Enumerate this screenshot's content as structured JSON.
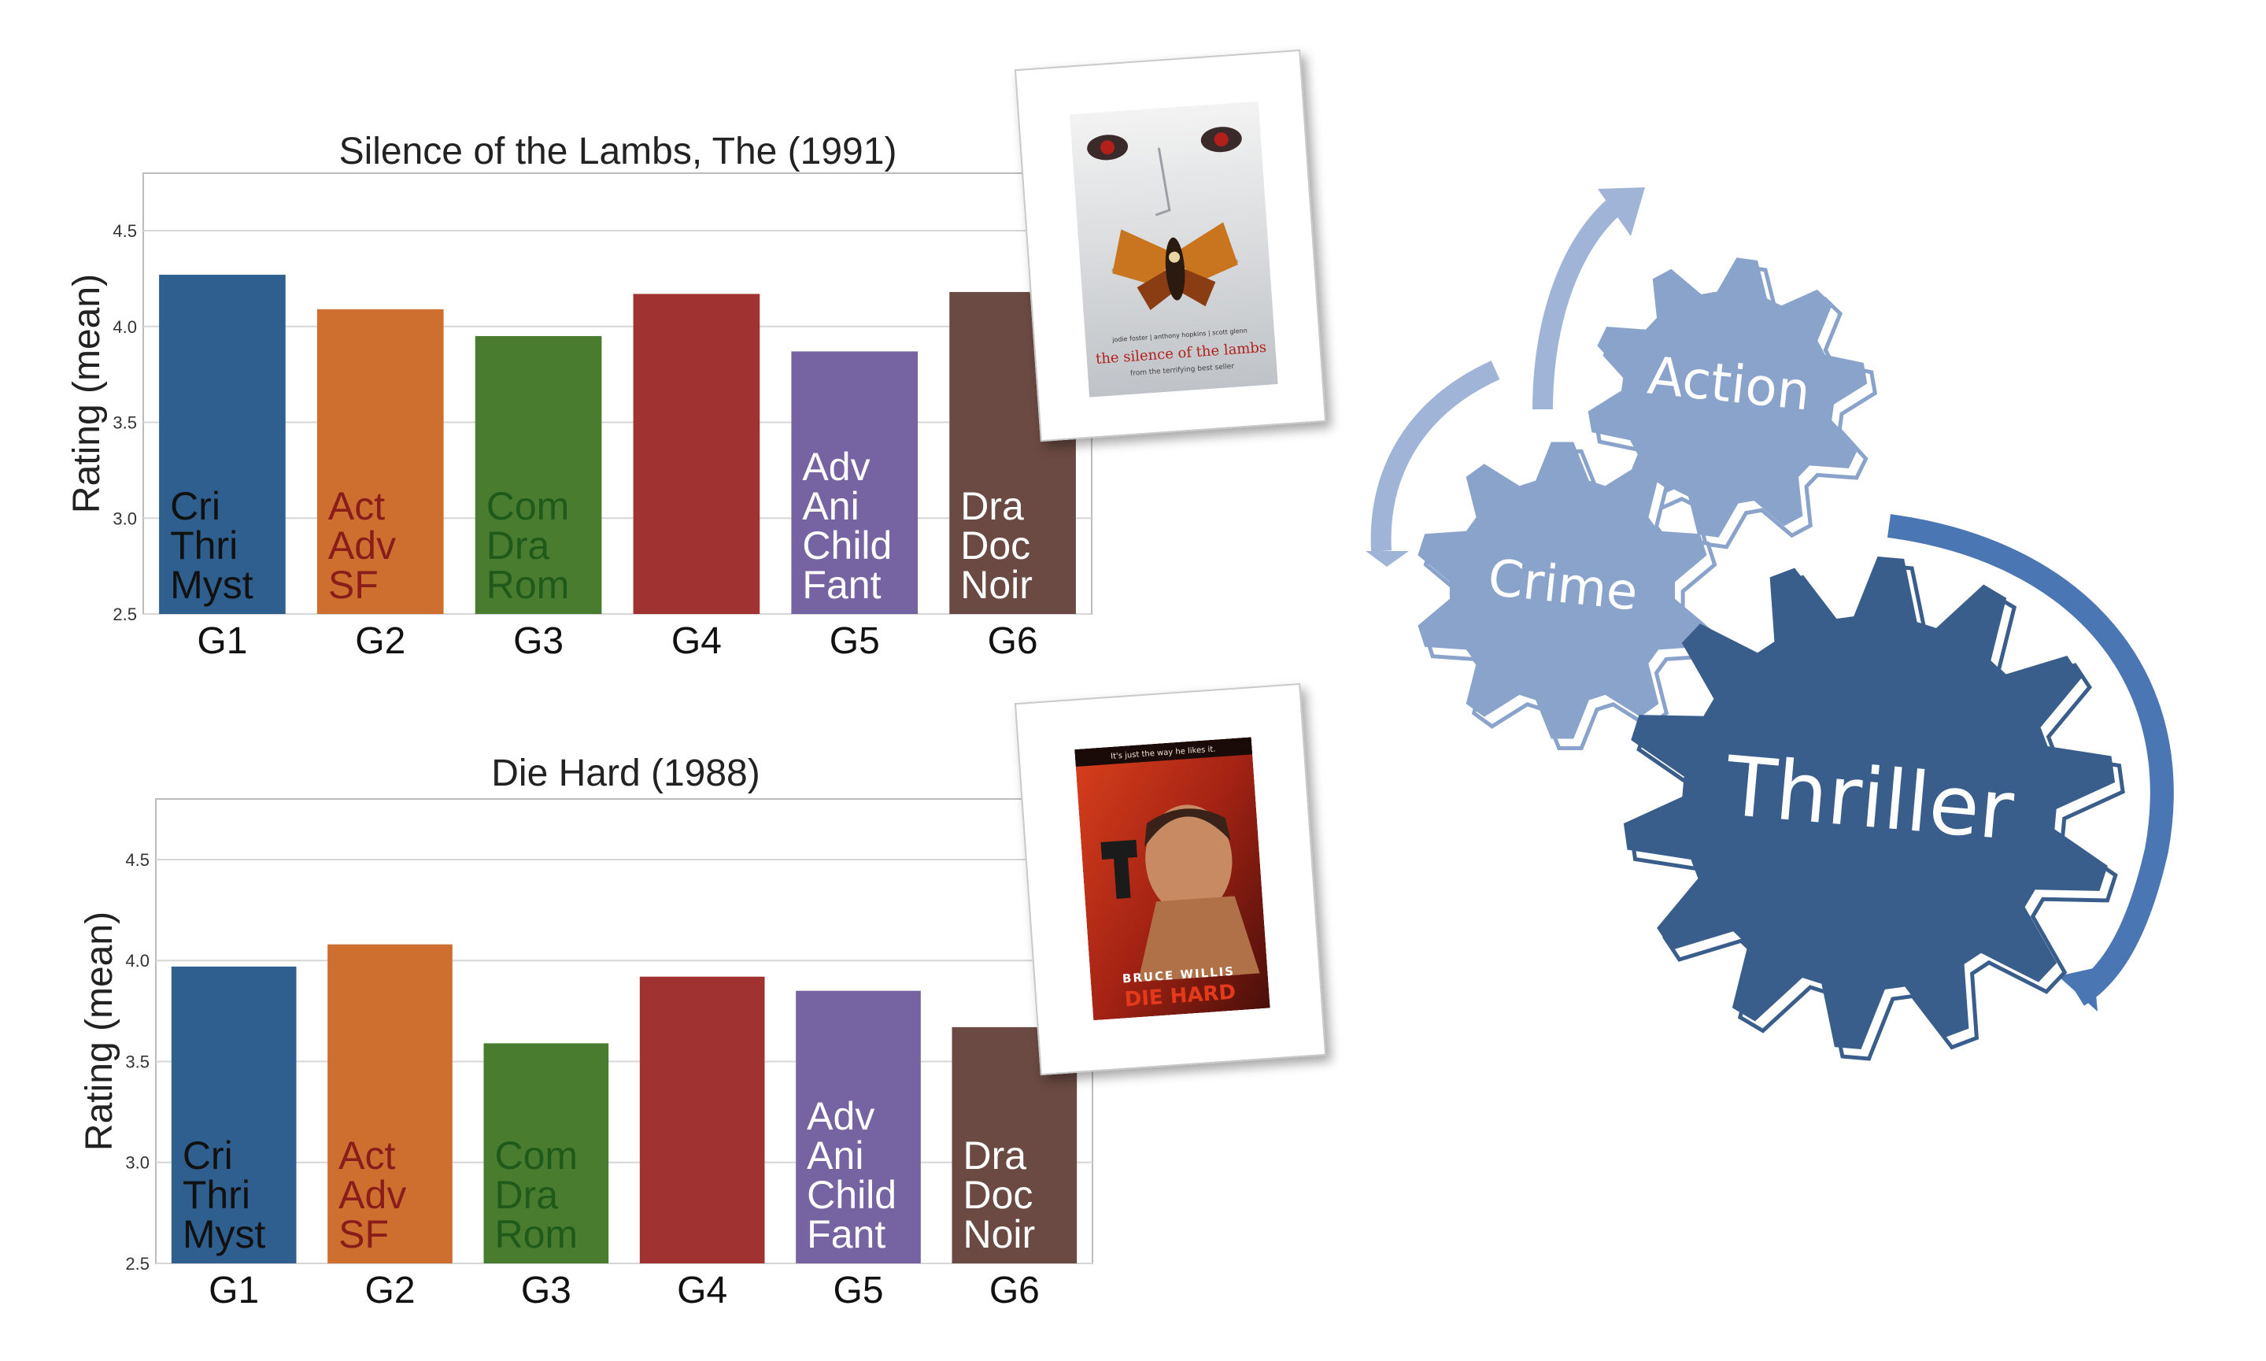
{
  "chart_data": [
    {
      "type": "bar",
      "title": "Silence of the Lambs, The (1991)",
      "xlabel": "",
      "ylabel": "Rating (mean)",
      "ylim": [
        2.5,
        4.8
      ],
      "yticks": [
        "2.5",
        "3.0",
        "3.5",
        "4.0",
        "4.5"
      ],
      "grid": true,
      "categories": [
        "G1",
        "G2",
        "G3",
        "G4",
        "G5",
        "G6"
      ],
      "values": [
        4.27,
        4.09,
        3.95,
        4.17,
        3.87,
        4.18
      ],
      "colors": [
        "#2f5f8f",
        "#cf6f2f",
        "#497c2f",
        "#a03232",
        "#7663a2",
        "#6a4a42"
      ],
      "bar_labels": [
        {
          "lines": [
            "Cri",
            "Thri",
            "Myst"
          ],
          "color": "#111111"
        },
        {
          "lines": [
            "Act",
            "Adv",
            "SF"
          ],
          "color": "#8a1c1c"
        },
        {
          "lines": [
            "Com",
            "Dra",
            "Rom"
          ],
          "color": "#1f5a1a"
        },
        {
          "lines": [],
          "color": "#ffffff"
        },
        {
          "lines": [
            "Adv",
            "Ani",
            "Child",
            "Fant"
          ],
          "color": "#ffffff"
        },
        {
          "lines": [
            "Dra",
            "Doc",
            "Noir"
          ],
          "color": "#ffffff"
        }
      ]
    },
    {
      "type": "bar",
      "title": "Die Hard (1988)",
      "xlabel": "",
      "ylabel": "Rating (mean)",
      "ylim": [
        2.5,
        4.8
      ],
      "yticks": [
        "2.5",
        "3.0",
        "3.5",
        "4.0",
        "4.5"
      ],
      "grid": true,
      "categories": [
        "G1",
        "G2",
        "G3",
        "G4",
        "G5",
        "G6"
      ],
      "values": [
        3.97,
        4.08,
        3.59,
        3.92,
        3.85,
        3.67
      ],
      "colors": [
        "#2f5f8f",
        "#cf6f2f",
        "#497c2f",
        "#a03232",
        "#7663a2",
        "#6a4a42"
      ],
      "bar_labels": [
        {
          "lines": [
            "Cri",
            "Thri",
            "Myst"
          ],
          "color": "#111111"
        },
        {
          "lines": [
            "Act",
            "Adv",
            "SF"
          ],
          "color": "#8a1c1c"
        },
        {
          "lines": [
            "Com",
            "Dra",
            "Rom"
          ],
          "color": "#1f5a1a"
        },
        {
          "lines": [],
          "color": "#ffffff"
        },
        {
          "lines": [
            "Adv",
            "Ani",
            "Child",
            "Fant"
          ],
          "color": "#ffffff"
        },
        {
          "lines": [
            "Dra",
            "Doc",
            "Noir"
          ],
          "color": "#ffffff"
        }
      ]
    }
  ],
  "posters": [
    {
      "name": "silence-of-the-lambs",
      "text": "the silence of the lambs",
      "tagline": "from the terrifying best seller",
      "credits": "jodie foster | anthony hopkins | scott glenn"
    },
    {
      "name": "die-hard",
      "text": "DIE HARD",
      "actor": "BRUCE WILLIS",
      "tagline": "It's just the way he likes it."
    }
  ],
  "gears": [
    {
      "label": "Action",
      "color": "#8aa3cb"
    },
    {
      "label": "Crime",
      "color": "#8aa3cb"
    },
    {
      "label": "Thriller",
      "color": "#3a5e8c"
    }
  ]
}
